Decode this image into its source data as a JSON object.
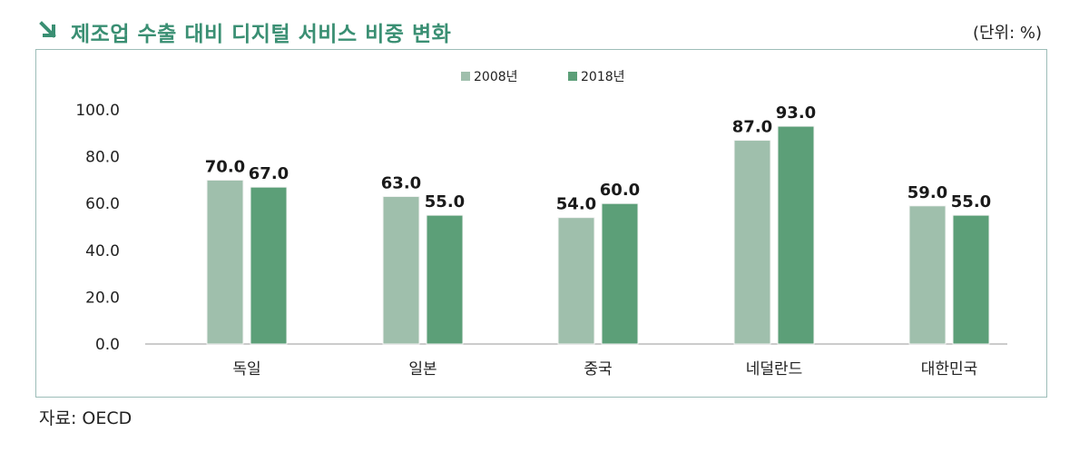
{
  "header": {
    "title": "제조업 수출 대비 디지털 서비스 비중 변화",
    "unit": "(단위: %)"
  },
  "footer": {
    "source": "자료: OECD"
  },
  "icons": {
    "title_marker": "arrow-down-right-icon"
  },
  "colors": {
    "title": "#3a8f73",
    "series_2008": "#9fbfac",
    "series_2018": "#5c9f78",
    "axis": "#bbbbbb"
  },
  "chart_data": {
    "type": "bar",
    "title": "제조업 수출 대비 디지털 서비스 비중 변화",
    "xlabel": "",
    "ylabel": "",
    "categories": [
      "독일",
      "일본",
      "중국",
      "네덜란드",
      "대한민국"
    ],
    "series": [
      {
        "name": "2008년",
        "values": [
          70.0,
          63.0,
          54.0,
          87.0,
          59.0
        ]
      },
      {
        "name": "2018년",
        "values": [
          67.0,
          55.0,
          60.0,
          93.0,
          55.0
        ]
      }
    ],
    "ylim": [
      0,
      100
    ],
    "yticks": [
      "0.0",
      "20.0",
      "40.0",
      "60.0",
      "80.0",
      "100.0"
    ],
    "data_labels": [
      [
        "70.0",
        "63.0",
        "54.0",
        "87.0",
        "59.0"
      ],
      [
        "67.0",
        "55.0",
        "60.0",
        "93.0",
        "55.0"
      ]
    ],
    "legend_position": "top-center",
    "grid": false
  }
}
